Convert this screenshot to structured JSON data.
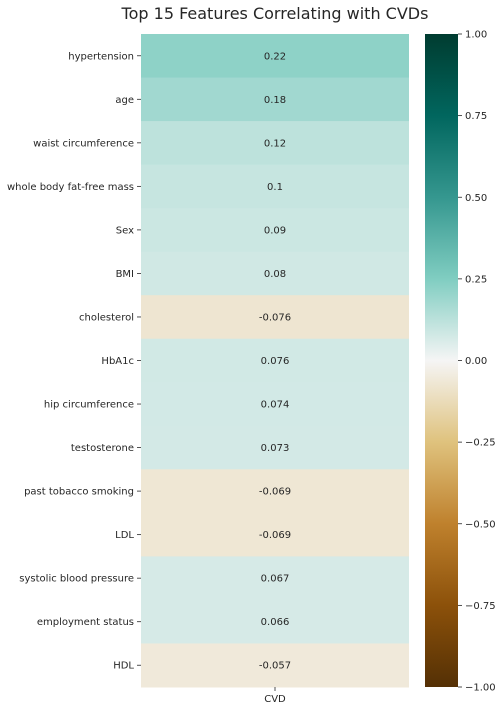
{
  "chart_data": {
    "type": "heatmap",
    "title": "Top 15 Features Correlating with CVDs",
    "xlabel": "",
    "ylabel": "",
    "columns": [
      "CVD"
    ],
    "rows": [
      {
        "label": "hypertension",
        "value": 0.22,
        "text": "0.22"
      },
      {
        "label": "age",
        "value": 0.18,
        "text": "0.18"
      },
      {
        "label": "waist circumference",
        "value": 0.12,
        "text": "0.12"
      },
      {
        "label": "whole body fat-free mass",
        "value": 0.1,
        "text": "0.1"
      },
      {
        "label": "Sex",
        "value": 0.09,
        "text": "0.09"
      },
      {
        "label": "BMI",
        "value": 0.08,
        "text": "0.08"
      },
      {
        "label": "cholesterol",
        "value": -0.076,
        "text": "-0.076"
      },
      {
        "label": "HbA1c",
        "value": 0.076,
        "text": "0.076"
      },
      {
        "label": "hip circumference",
        "value": 0.074,
        "text": "0.074"
      },
      {
        "label": "testosterone",
        "value": 0.073,
        "text": "0.073"
      },
      {
        "label": "past tobacco smoking",
        "value": -0.069,
        "text": "-0.069"
      },
      {
        "label": "LDL",
        "value": -0.069,
        "text": "-0.069"
      },
      {
        "label": "systolic blood pressure",
        "value": 0.067,
        "text": "0.067"
      },
      {
        "label": "employment status",
        "value": 0.066,
        "text": "0.066"
      },
      {
        "label": "HDL",
        "value": -0.057,
        "text": "-0.057"
      }
    ],
    "colorbar": {
      "colormap": "BrBG",
      "vmin": -1.0,
      "vmax": 1.0,
      "ticks": [
        1.0,
        0.75,
        0.5,
        0.25,
        0.0,
        -0.25,
        -0.5,
        -0.75,
        -1.0
      ],
      "tick_labels": [
        "1.00",
        "0.75",
        "0.50",
        "0.25",
        "0.00",
        "−0.25",
        "−0.50",
        "−0.75",
        "−1.00"
      ]
    }
  }
}
